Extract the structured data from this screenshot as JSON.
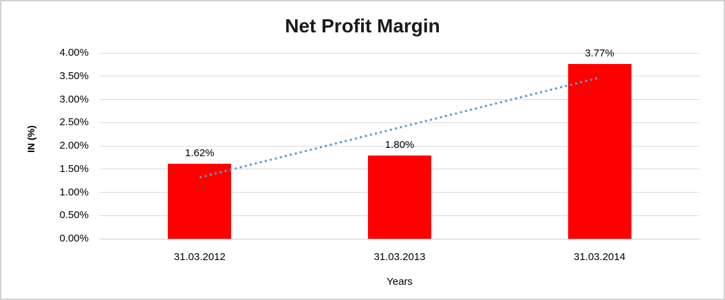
{
  "chart": {
    "title": "Net Profit Margin",
    "y_axis_title": "IN (%)",
    "x_axis_title": "Years"
  },
  "chart_data": {
    "type": "bar",
    "title": "Net Profit Margin",
    "categories": [
      "31.03.2012",
      "31.03.2013",
      "31.03.2014"
    ],
    "values": [
      1.62,
      1.8,
      3.77
    ],
    "data_labels": [
      "1.62%",
      "1.80%",
      "3.77%"
    ],
    "xlabel": "Years",
    "ylabel": "IN (%)",
    "ylim": [
      0,
      4
    ],
    "ytick_step": 0.5,
    "ytick_labels": [
      "0.00%",
      "0.50%",
      "1.00%",
      "1.50%",
      "2.00%",
      "2.50%",
      "3.00%",
      "3.50%",
      "4.00%"
    ],
    "grid": true,
    "legend": false,
    "bar_color": "#FF0000",
    "trendline": {
      "type": "linear",
      "style": "dotted",
      "color": "#5B9BD5",
      "start_value": 1.32,
      "end_value": 3.47,
      "spans_categories": [
        0,
        2
      ]
    }
  },
  "colors": {
    "background": "#FFFFFF",
    "border": "#D2D2D2",
    "gridline": "#D9D9D9",
    "axis_line": "#CDCDCD",
    "title_text": "#1A1A1A",
    "text": "#000000",
    "bar": "#FF0000",
    "trendline": "#5B9BD5"
  }
}
